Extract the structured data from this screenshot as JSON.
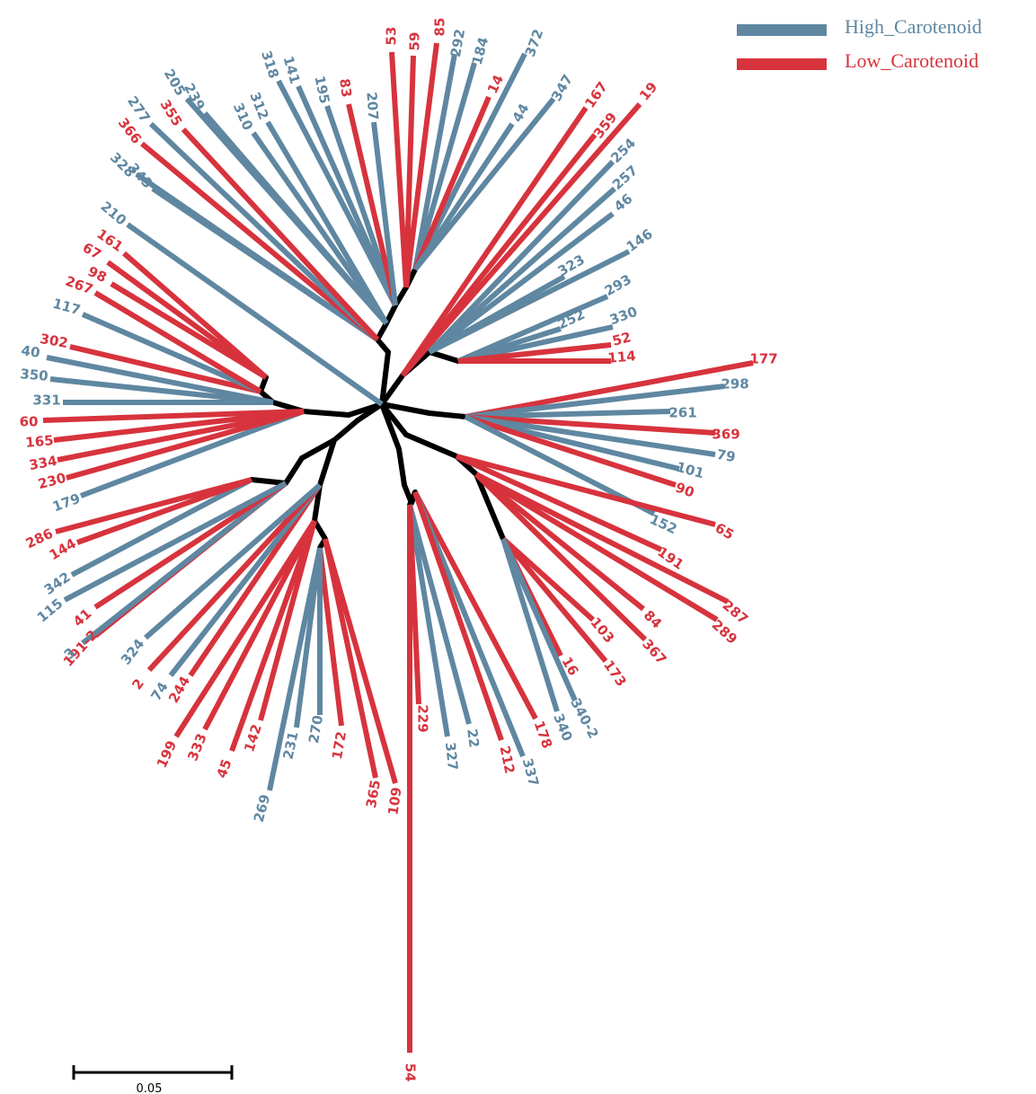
{
  "colors": {
    "high": "#5f87a1",
    "low": "#d7333d",
    "internal": "#000000"
  },
  "legend": [
    {
      "label": "High_Carotenoid",
      "group": "high"
    },
    {
      "label": "Low_Carotenoid",
      "group": "low"
    }
  ],
  "scale_bar": {
    "label": "0.05",
    "length": 0.05
  },
  "tree": {
    "root": "center",
    "internal_branches": [
      [
        "center",
        "u1"
      ],
      [
        "u1",
        "u2"
      ],
      [
        "u2",
        "u3"
      ],
      [
        "u3",
        "u4"
      ],
      [
        "u4",
        "u5"
      ],
      [
        "u5",
        "u6"
      ],
      [
        "center",
        "ur1"
      ],
      [
        "ur1",
        "ur2"
      ],
      [
        "ur2",
        "ur3"
      ],
      [
        "center",
        "r1"
      ],
      [
        "r1",
        "r2"
      ],
      [
        "center",
        "lr1"
      ],
      [
        "lr1",
        "lr2"
      ],
      [
        "lr2",
        "lr3"
      ],
      [
        "lr3",
        "lr4"
      ],
      [
        "center",
        "ls1"
      ],
      [
        "ls1",
        "ls2"
      ],
      [
        "ls2",
        "ls3"
      ],
      [
        "ls3",
        "ls4"
      ],
      [
        "ls4",
        "ls5"
      ],
      [
        "center",
        "l1"
      ],
      [
        "l1",
        "l2"
      ],
      [
        "l2",
        "l3"
      ],
      [
        "l3",
        "l4"
      ],
      [
        "l4",
        "l5"
      ],
      [
        "center",
        "b1"
      ],
      [
        "b1",
        "b2"
      ],
      [
        "b2",
        "b3"
      ],
      [
        "b3",
        "b4"
      ],
      [
        "b4",
        "b5"
      ],
      [
        "b5",
        "b6"
      ],
      [
        "b2",
        "bl1"
      ],
      [
        "bl1",
        "bl2"
      ],
      [
        "bl2",
        "bl3"
      ]
    ],
    "leaves": [
      {
        "label": "53",
        "group": "low",
        "parent": "u5"
      },
      {
        "label": "59",
        "group": "low",
        "parent": "u5"
      },
      {
        "label": "85",
        "group": "low",
        "parent": "u5"
      },
      {
        "label": "292",
        "group": "high",
        "parent": "u6"
      },
      {
        "label": "184",
        "group": "high",
        "parent": "u6"
      },
      {
        "label": "372",
        "group": "high",
        "parent": "u6"
      },
      {
        "label": "14",
        "group": "low",
        "parent": "u6"
      },
      {
        "label": "44",
        "group": "high",
        "parent": "u6"
      },
      {
        "label": "347",
        "group": "high",
        "parent": "u6"
      },
      {
        "label": "167",
        "group": "low",
        "parent": "ur1"
      },
      {
        "label": "359",
        "group": "low",
        "parent": "ur1"
      },
      {
        "label": "19",
        "group": "low",
        "parent": "ur1"
      },
      {
        "label": "254",
        "group": "high",
        "parent": "ur2"
      },
      {
        "label": "257",
        "group": "high",
        "parent": "ur2"
      },
      {
        "label": "46",
        "group": "high",
        "parent": "ur2"
      },
      {
        "label": "146",
        "group": "high",
        "parent": "ur2"
      },
      {
        "label": "323",
        "group": "high",
        "parent": "ur2"
      },
      {
        "label": "293",
        "group": "high",
        "parent": "ur3"
      },
      {
        "label": "252",
        "group": "high",
        "parent": "ur3"
      },
      {
        "label": "330",
        "group": "high",
        "parent": "ur3"
      },
      {
        "label": "52",
        "group": "low",
        "parent": "ur3"
      },
      {
        "label": "114",
        "group": "low",
        "parent": "ur3"
      },
      {
        "label": "177",
        "group": "low",
        "parent": "r2"
      },
      {
        "label": "298",
        "group": "high",
        "parent": "r2"
      },
      {
        "label": "261",
        "group": "high",
        "parent": "r2"
      },
      {
        "label": "369",
        "group": "low",
        "parent": "r2"
      },
      {
        "label": "79",
        "group": "high",
        "parent": "r2"
      },
      {
        "label": "101",
        "group": "high",
        "parent": "r2"
      },
      {
        "label": "90",
        "group": "low",
        "parent": "r2"
      },
      {
        "label": "152",
        "group": "high",
        "parent": "r2"
      },
      {
        "label": "65",
        "group": "low",
        "parent": "lr2"
      },
      {
        "label": "191",
        "group": "low",
        "parent": "lr2"
      },
      {
        "label": "287",
        "group": "low",
        "parent": "lr3"
      },
      {
        "label": "289",
        "group": "low",
        "parent": "lr3"
      },
      {
        "label": "84",
        "group": "low",
        "parent": "lr3"
      },
      {
        "label": "367",
        "group": "low",
        "parent": "lr3"
      },
      {
        "label": "103",
        "group": "low",
        "parent": "lr4"
      },
      {
        "label": "173",
        "group": "low",
        "parent": "lr4"
      },
      {
        "label": "16",
        "group": "low",
        "parent": "lr4"
      },
      {
        "label": "340-2",
        "group": "high",
        "parent": "lr4"
      },
      {
        "label": "340",
        "group": "high",
        "parent": "lr4"
      },
      {
        "label": "178",
        "group": "low",
        "parent": "ls4"
      },
      {
        "label": "337",
        "group": "high",
        "parent": "ls4"
      },
      {
        "label": "212",
        "group": "low",
        "parent": "ls4"
      },
      {
        "label": "22",
        "group": "high",
        "parent": "ls5"
      },
      {
        "label": "327",
        "group": "high",
        "parent": "ls5"
      },
      {
        "label": "229",
        "group": "low",
        "parent": "ls5"
      },
      {
        "label": "54",
        "group": "low",
        "parent": "ls5"
      },
      {
        "label": "109",
        "group": "low",
        "parent": "b5"
      },
      {
        "label": "365",
        "group": "low",
        "parent": "b5"
      },
      {
        "label": "172",
        "group": "low",
        "parent": "b6"
      },
      {
        "label": "270",
        "group": "high",
        "parent": "b6"
      },
      {
        "label": "231",
        "group": "high",
        "parent": "b6"
      },
      {
        "label": "269",
        "group": "high",
        "parent": "b6"
      },
      {
        "label": "142",
        "group": "low",
        "parent": "b4"
      },
      {
        "label": "45",
        "group": "low",
        "parent": "b4"
      },
      {
        "label": "333",
        "group": "low",
        "parent": "b4"
      },
      {
        "label": "199",
        "group": "low",
        "parent": "b4"
      },
      {
        "label": "244",
        "group": "low",
        "parent": "b3"
      },
      {
        "label": "74",
        "group": "high",
        "parent": "b3"
      },
      {
        "label": "2",
        "group": "low",
        "parent": "b3"
      },
      {
        "label": "324",
        "group": "high",
        "parent": "b3"
      },
      {
        "label": "191-2",
        "group": "low",
        "parent": "bl2"
      },
      {
        "label": "3",
        "group": "high",
        "parent": "bl2"
      },
      {
        "label": "41",
        "group": "low",
        "parent": "bl2"
      },
      {
        "label": "115",
        "group": "high",
        "parent": "bl2"
      },
      {
        "label": "342",
        "group": "high",
        "parent": "bl3"
      },
      {
        "label": "144",
        "group": "low",
        "parent": "bl3"
      },
      {
        "label": "286",
        "group": "low",
        "parent": "bl3"
      },
      {
        "label": "179",
        "group": "high",
        "parent": "l2"
      },
      {
        "label": "230",
        "group": "low",
        "parent": "l2"
      },
      {
        "label": "334",
        "group": "low",
        "parent": "l2"
      },
      {
        "label": "165",
        "group": "low",
        "parent": "l2"
      },
      {
        "label": "60",
        "group": "low",
        "parent": "l2"
      },
      {
        "label": "331",
        "group": "high",
        "parent": "l3"
      },
      {
        "label": "350",
        "group": "high",
        "parent": "l3"
      },
      {
        "label": "40",
        "group": "high",
        "parent": "l3"
      },
      {
        "label": "302",
        "group": "low",
        "parent": "l4"
      },
      {
        "label": "117",
        "group": "high",
        "parent": "l4"
      },
      {
        "label": "267",
        "group": "low",
        "parent": "l4"
      },
      {
        "label": "98",
        "group": "low",
        "parent": "l5"
      },
      {
        "label": "67",
        "group": "low",
        "parent": "l5"
      },
      {
        "label": "161",
        "group": "low",
        "parent": "l5"
      },
      {
        "label": "210",
        "group": "high",
        "parent": "center"
      },
      {
        "label": "328",
        "group": "high",
        "parent": "u2"
      },
      {
        "label": "343",
        "group": "high",
        "parent": "u2"
      },
      {
        "label": "366",
        "group": "low",
        "parent": "u2"
      },
      {
        "label": "277",
        "group": "high",
        "parent": "u2"
      },
      {
        "label": "355",
        "group": "low",
        "parent": "u2"
      },
      {
        "label": "205",
        "group": "high",
        "parent": "u3"
      },
      {
        "label": "239",
        "group": "high",
        "parent": "u3"
      },
      {
        "label": "310",
        "group": "high",
        "parent": "u3"
      },
      {
        "label": "312",
        "group": "high",
        "parent": "u3"
      },
      {
        "label": "318",
        "group": "high",
        "parent": "u4"
      },
      {
        "label": "141",
        "group": "high",
        "parent": "u4"
      },
      {
        "label": "195",
        "group": "high",
        "parent": "u4"
      },
      {
        "label": "83",
        "group": "low",
        "parent": "u4"
      },
      {
        "label": "207",
        "group": "high",
        "parent": "u4"
      }
    ]
  }
}
